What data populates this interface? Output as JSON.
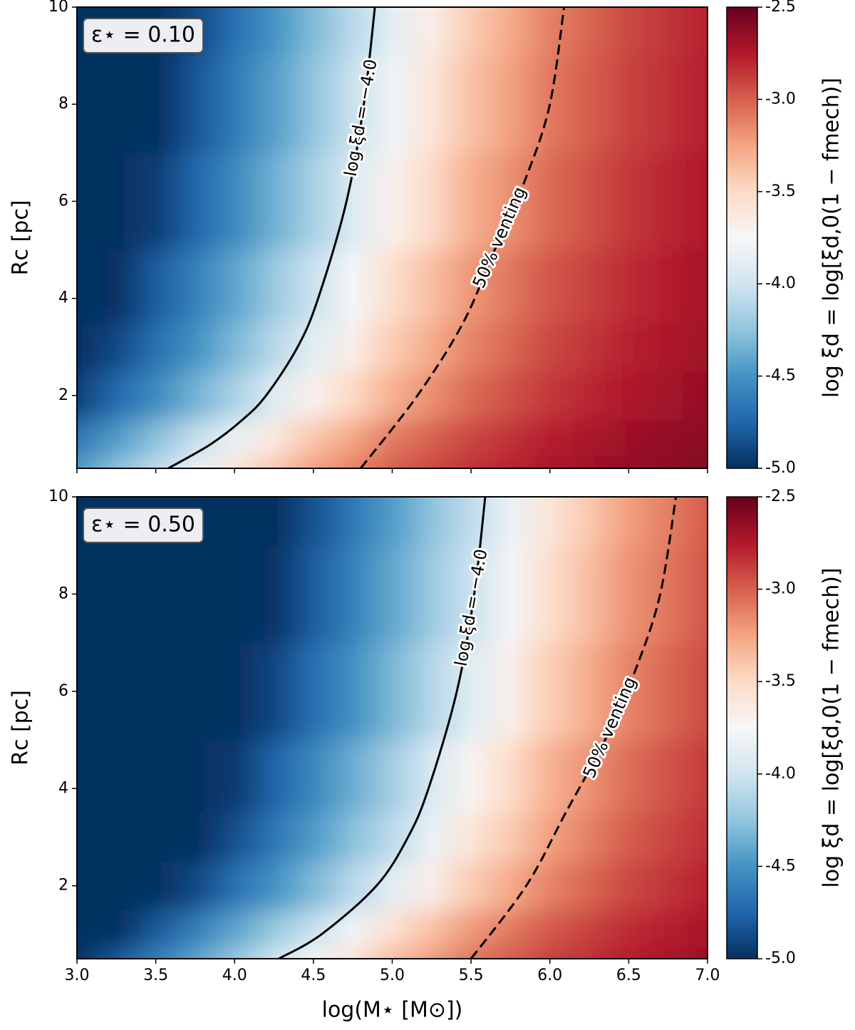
{
  "chart_data": [
    {
      "type": "contour",
      "annotation": "ε⋆ = 0.10",
      "ylabel": "Rc [pc]",
      "x": [
        3,
        3.5,
        4,
        4.5,
        5,
        5.5,
        6,
        6.5,
        7
      ],
      "y": [
        0.5,
        1,
        2,
        3,
        4,
        6,
        8,
        10
      ],
      "z": [
        [
          -4.45,
          -4.06,
          -3.58,
          -3.22,
          -2.99,
          -2.83,
          -2.72,
          -2.65,
          -2.6
        ],
        [
          -4.65,
          -4.27,
          -3.83,
          -3.4,
          -3.1,
          -2.91,
          -2.77,
          -2.68,
          -2.62
        ],
        [
          -4.92,
          -4.54,
          -4.15,
          -3.68,
          -3.3,
          -3.04,
          -2.86,
          -2.74,
          -2.66
        ],
        [
          -5.08,
          -4.69,
          -4.31,
          -3.89,
          -3.43,
          -3.13,
          -2.92,
          -2.78,
          -2.69
        ],
        [
          -5.18,
          -4.79,
          -4.41,
          -4.02,
          -3.53,
          -3.2,
          -2.97,
          -2.82,
          -2.71
        ],
        [
          -5.32,
          -4.93,
          -4.55,
          -4.16,
          -3.69,
          -3.3,
          -3.04,
          -2.86,
          -2.74
        ],
        [
          -5.4,
          -5.02,
          -4.63,
          -4.25,
          -3.8,
          -3.38,
          -3.09,
          -2.9,
          -2.77
        ],
        [
          -5.46,
          -5.07,
          -4.69,
          -4.3,
          -3.88,
          -3.43,
          -3.12,
          -2.92,
          -2.78
        ]
      ],
      "xlim": [
        3,
        7
      ],
      "ylim": [
        0.5,
        10
      ],
      "yticks": [
        2,
        4,
        6,
        8,
        10
      ],
      "contours": [
        {
          "label": "log ξd = −4.0",
          "style": "solid",
          "color": "#000000",
          "x": [
            3.58,
            3.85,
            4.05,
            4.2,
            4.4,
            4.53,
            4.71,
            4.82,
            4.89
          ],
          "y": [
            0.5,
            1,
            1.5,
            2,
            3,
            4,
            6,
            8,
            10
          ]
        },
        {
          "label": "50% venting",
          "style": "dashed",
          "color": "#000000",
          "x": [
            4.8,
            5.16,
            5.45,
            5.65,
            5.85,
            6.0,
            6.09
          ],
          "y": [
            0.5,
            2,
            3.5,
            5,
            6.5,
            8,
            10
          ]
        }
      ],
      "colorbar": {
        "label": "log ξd = log[ξd,0(1 − fmech)]",
        "colormap": "RdBu_r",
        "zlim": [
          -5,
          -2.5
        ],
        "ticks": [
          {
            "value": -5,
            "label": "-5.0"
          },
          -4.5,
          {
            "value": -4,
            "label": "-4.0"
          },
          -3.5,
          {
            "value": -3,
            "label": "-3.0"
          },
          -2.5
        ]
      }
    },
    {
      "type": "contour",
      "annotation": "ε⋆ = 0.50",
      "ylabel": "Rc [pc]",
      "xlabel": "log(M⋆ [M⊙])",
      "x": [
        3,
        3.5,
        4,
        4.5,
        5,
        5.5,
        6,
        6.5,
        7
      ],
      "y": [
        0.5,
        1,
        2,
        3,
        4,
        6,
        8,
        10
      ],
      "z": [
        [
          -4.99,
          -4.6,
          -4.22,
          -3.76,
          -3.35,
          -3.07,
          -2.89,
          -2.76,
          -2.67
        ],
        [
          -5.19,
          -4.81,
          -4.42,
          -4.04,
          -3.55,
          -3.21,
          -2.98,
          -2.82,
          -2.72
        ],
        [
          -5.46,
          -5.08,
          -4.69,
          -4.31,
          -3.89,
          -3.43,
          -3.13,
          -2.92,
          -2.78
        ],
        [
          -5.62,
          -5.23,
          -4.85,
          -4.46,
          -4.08,
          -3.59,
          -3.24,
          -2.99,
          -2.83
        ],
        [
          -5.72,
          -5.33,
          -4.95,
          -4.56,
          -4.18,
          -3.71,
          -3.31,
          -3.05,
          -2.87
        ],
        [
          -5.86,
          -5.47,
          -5.09,
          -4.7,
          -4.32,
          -3.9,
          -3.44,
          -3.13,
          -2.93
        ],
        [
          -5.94,
          -5.56,
          -5.17,
          -4.79,
          -4.4,
          -4.02,
          -3.53,
          -3.19,
          -2.97
        ],
        [
          -5.99,
          -5.61,
          -5.22,
          -4.84,
          -4.45,
          -4.07,
          -3.59,
          -3.23,
          -2.99
        ]
      ],
      "xlim": [
        3,
        7
      ],
      "ylim": [
        0.5,
        10
      ],
      "xticks": [
        {
          "value": 3,
          "label": "3.0"
        },
        3.5,
        {
          "value": 4,
          "label": "4.0"
        },
        4.5,
        {
          "value": 5,
          "label": "5.0"
        },
        5.5,
        {
          "value": 6,
          "label": "6.0"
        },
        6.5,
        {
          "value": 7,
          "label": "7.0"
        }
      ],
      "yticks": [
        2,
        4,
        6,
        8,
        10
      ],
      "contours": [
        {
          "label": "log ξd = −4.0",
          "style": "solid",
          "color": "#000000",
          "x": [
            4.28,
            4.55,
            4.9,
            5.1,
            5.23,
            5.41,
            5.52,
            5.59
          ],
          "y": [
            0.5,
            1,
            2,
            3,
            4,
            6,
            8,
            10
          ]
        },
        {
          "label": "50% venting",
          "style": "dashed",
          "color": "#000000",
          "x": [
            5.5,
            5.85,
            6.1,
            6.35,
            6.55,
            6.7,
            6.8
          ],
          "y": [
            0.5,
            2,
            3.5,
            5,
            6.5,
            8,
            10
          ]
        }
      ],
      "colorbar": {
        "label": "log ξd = log[ξd,0(1 − fmech)]",
        "colormap": "RdBu_r",
        "zlim": [
          -5,
          -2.5
        ],
        "ticks": [
          {
            "value": -5,
            "label": "-5.0"
          },
          -4.5,
          {
            "value": -4,
            "label": "-4.0"
          },
          -3.5,
          {
            "value": -3,
            "label": "-3.0"
          },
          -2.5
        ]
      }
    }
  ]
}
